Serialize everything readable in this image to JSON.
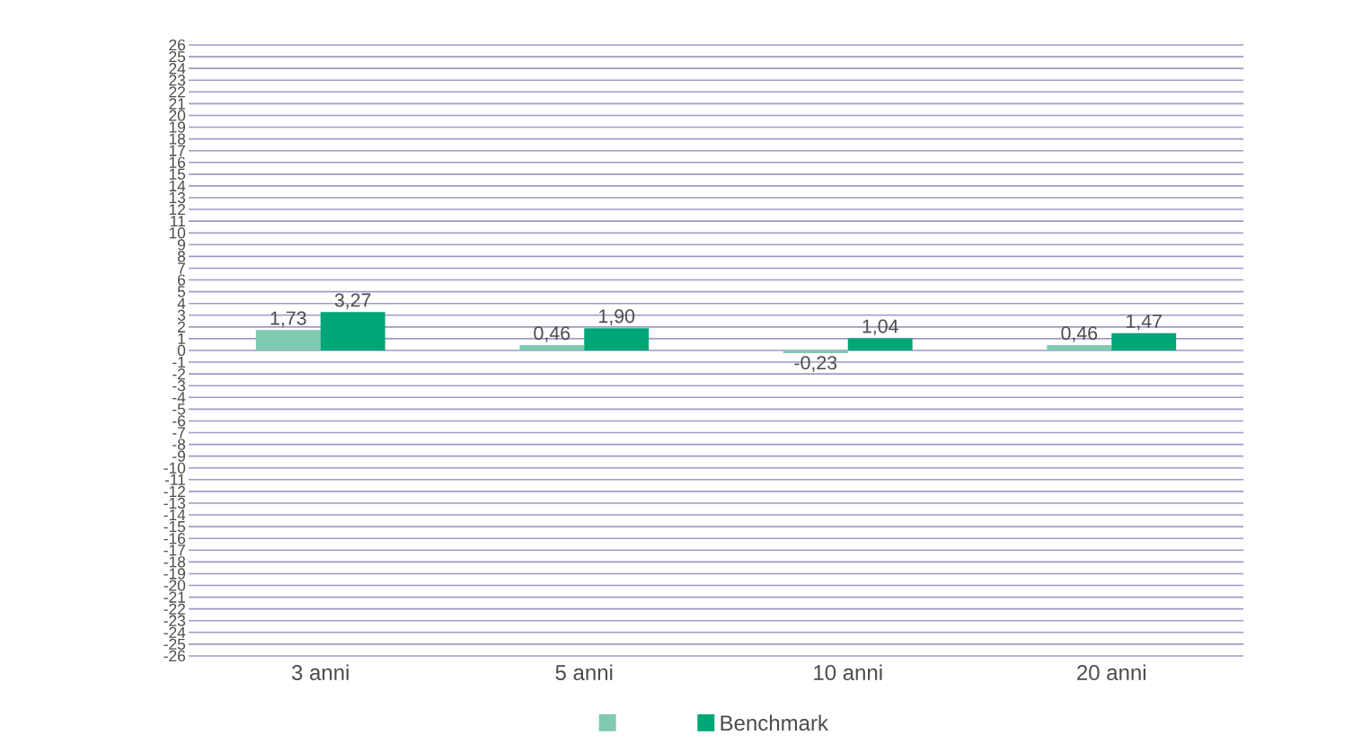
{
  "chart_data": {
    "type": "bar",
    "categories": [
      "3 anni",
      "5 anni",
      "10 anni",
      "20 anni"
    ],
    "series": [
      {
        "color": "#7fcab0",
        "values": [
          1.73,
          0.46,
          -0.23,
          0.46
        ],
        "value_labels": [
          "1,73",
          "0,46",
          "-0,23",
          "0,46"
        ]
      },
      {
        "name": "Benchmark",
        "color": "#00a676",
        "values": [
          3.27,
          1.9,
          1.04,
          1.47
        ],
        "value_labels": [
          "3,27",
          "1,90",
          "1,04",
          "1,47"
        ]
      }
    ],
    "ylim": [
      -26,
      26
    ],
    "yticks": [
      -26,
      -25,
      -24,
      -23,
      -22,
      -21,
      -20,
      -19,
      -18,
      -17,
      -16,
      -15,
      -14,
      -13,
      -12,
      -11,
      -10,
      -9,
      -8,
      -7,
      -6,
      -5,
      -4,
      -3,
      -2,
      -1,
      0,
      1,
      2,
      3,
      4,
      5,
      6,
      7,
      8,
      9,
      10,
      11,
      12,
      13,
      14,
      15,
      16,
      17,
      18,
      19,
      20,
      21,
      22,
      23,
      24,
      25,
      26
    ],
    "grid": "y",
    "legend": "bottom"
  }
}
